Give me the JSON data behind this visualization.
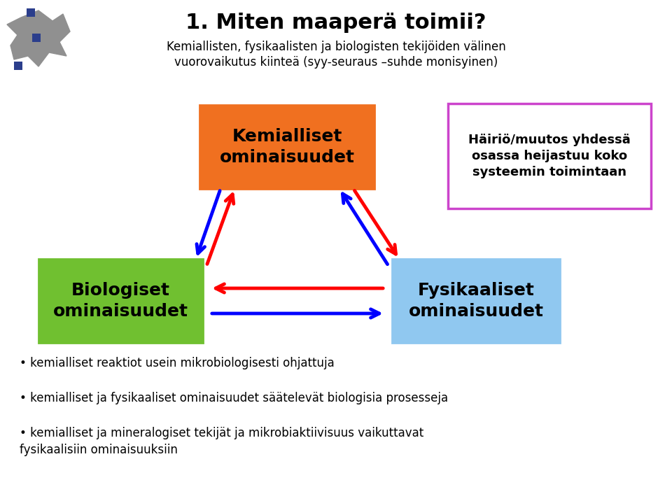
{
  "title": "1. Miten maaperä toimii?",
  "subtitle_line1": "Kemiallisten, fysikaalisten ja biologisten tekijöiden välinen",
  "subtitle_line2": "vuorovaikutus kiinteä (syy-seuraus –suhde monisyinen)",
  "box_top_label": "Kemialliset\nominaisuudet",
  "box_top_color": "#F07020",
  "box_left_label": "Biologiset\nominaisuudet",
  "box_left_color": "#70C030",
  "box_right_label": "Fysikaaliset\nominaisuudet",
  "box_right_color": "#90C8F0",
  "info_box_label": "Häiriö/muutos yhdessä\nosassa heijastuu koko\nsysteemin toimintaan",
  "info_box_border_color": "#CC44CC",
  "bullet1": "kemialliset reaktiot usein mikrobiologisesti ohjattuja",
  "bullet2": "kemialliset ja fysikaaliset ominaisuudet säätelevät biologisia prosesseja",
  "bullet3": "kemialliset ja mineralogiset tekijät ja mikrobiaktiivisuus vaikuttavat\nfysikaalisiin ominaisuuksiin",
  "bg_color": "#FFFFFF",
  "text_color": "#000000",
  "red_color": "#FF0000",
  "blue_color": "#0000FF"
}
